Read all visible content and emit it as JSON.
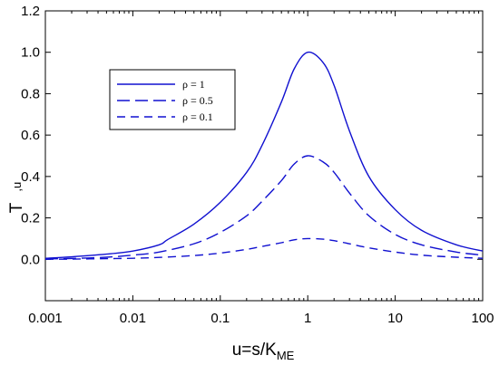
{
  "chart_data": {
    "type": "line",
    "xscale": "log",
    "xlim": [
      0.001,
      100
    ],
    "ylim": [
      -0.2,
      1.2
    ],
    "xticks": [
      0.001,
      0.01,
      0.1,
      1,
      10,
      100
    ],
    "xtick_labels": [
      "0.001",
      "0.01",
      "0.1",
      "1",
      "10",
      "100"
    ],
    "yticks": [
      0.0,
      0.2,
      0.4,
      0.6,
      0.8,
      1.0,
      1.2
    ],
    "ytick_labels": [
      "0.0",
      "0.2",
      "0.4",
      "0.6",
      "0.8",
      "1.0",
      "1.2"
    ],
    "xlabel": {
      "main": "u=s/K",
      "subscript": "ME"
    },
    "ylabel": {
      "main": "T",
      "subscript": ",u"
    },
    "grid": false,
    "legend_position": "upper-left",
    "line_color": "#1010d0",
    "series": [
      {
        "name": "ρ = 1",
        "dash": "solid",
        "x": [
          0.001,
          0.002,
          0.005,
          0.01,
          0.02,
          0.025,
          0.05,
          0.1,
          0.2,
          0.3,
          0.5,
          0.7,
          1,
          1.5,
          2,
          3,
          5,
          10,
          20,
          50,
          100
        ],
        "y": [
          0.005,
          0.012,
          0.025,
          0.04,
          0.07,
          0.095,
          0.17,
          0.275,
          0.42,
          0.55,
          0.76,
          0.92,
          1.0,
          0.95,
          0.84,
          0.62,
          0.4,
          0.24,
          0.14,
          0.07,
          0.04
        ]
      },
      {
        "name": "ρ = 0.5",
        "dash": "long-dash",
        "x": [
          0.001,
          0.002,
          0.005,
          0.01,
          0.02,
          0.05,
          0.1,
          0.2,
          0.3,
          0.5,
          0.7,
          1,
          1.5,
          2,
          3,
          5,
          10,
          20,
          50,
          100
        ],
        "y": [
          0.002,
          0.004,
          0.01,
          0.02,
          0.035,
          0.075,
          0.13,
          0.21,
          0.28,
          0.38,
          0.46,
          0.5,
          0.47,
          0.42,
          0.32,
          0.21,
          0.12,
          0.07,
          0.035,
          0.02
        ]
      },
      {
        "name": "ρ = 0.1",
        "dash": "short-dash",
        "x": [
          0.001,
          0.002,
          0.005,
          0.01,
          0.02,
          0.05,
          0.1,
          0.2,
          0.3,
          0.5,
          0.7,
          1,
          1.5,
          2,
          3,
          5,
          10,
          20,
          50,
          100
        ],
        "y": [
          0.0,
          0.001,
          0.003,
          0.005,
          0.009,
          0.018,
          0.03,
          0.048,
          0.062,
          0.08,
          0.094,
          0.1,
          0.097,
          0.09,
          0.075,
          0.055,
          0.035,
          0.02,
          0.01,
          0.005
        ]
      }
    ]
  }
}
